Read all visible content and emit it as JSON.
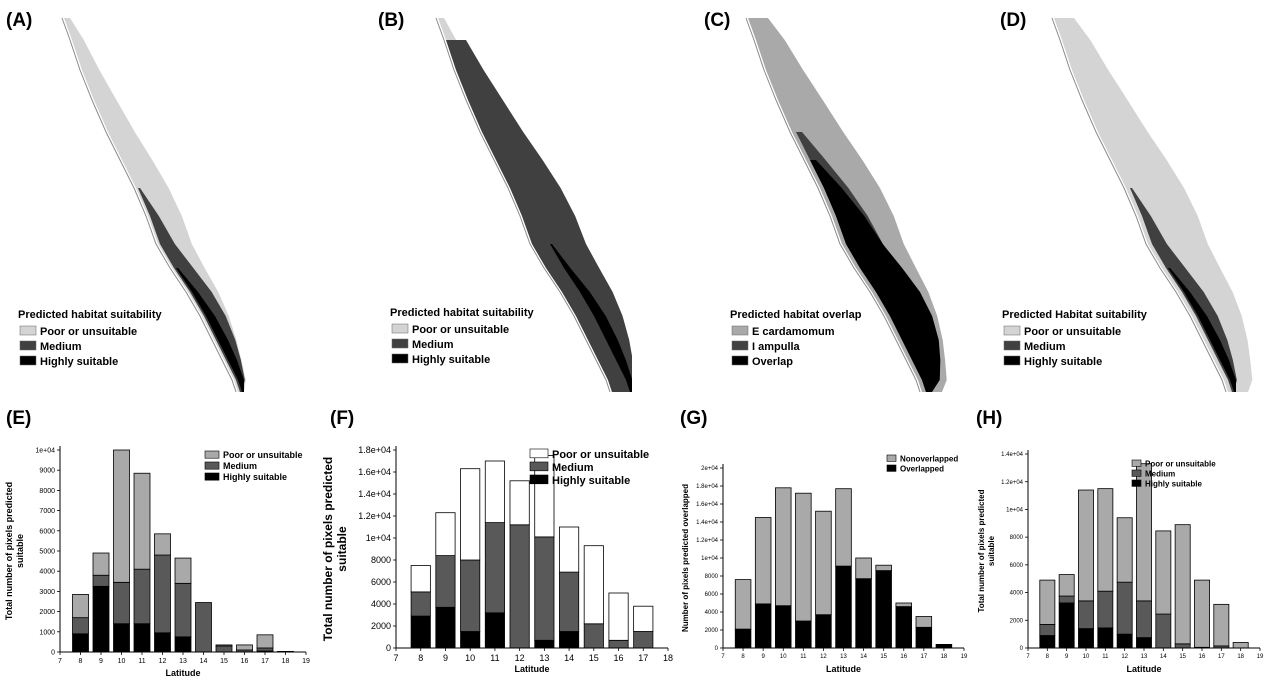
{
  "colors": {
    "poor": "#d4d4d4",
    "medium": "#404040",
    "high": "#000000",
    "bar_light": "#a9a9a9",
    "bar_medium": "#595959",
    "bar_dark": "#000000",
    "bar_white": "#ffffff",
    "coast": "#8a8a8a"
  },
  "maps": [
    {
      "id": "A",
      "label": "(A)",
      "style": "a",
      "legend_title": "Predicted habitat suitability",
      "legend_items": [
        {
          "label": "Poor or unsuitable",
          "color": "#d4d4d4"
        },
        {
          "label": "Medium",
          "color": "#404040"
        },
        {
          "label": "Highly suitable",
          "color": "#000000"
        }
      ]
    },
    {
      "id": "B",
      "label": "(B)",
      "style": "b",
      "legend_title": "Predicted habitat suitability",
      "legend_items": [
        {
          "label": "Poor or unsuitable",
          "color": "#d4d4d4"
        },
        {
          "label": "Medium",
          "color": "#404040"
        },
        {
          "label": "Highly suitable",
          "color": "#000000"
        }
      ]
    },
    {
      "id": "C",
      "label": "(C)",
      "style": "c",
      "legend_title": "Predicted habitat overlap",
      "legend_items": [
        {
          "label": "E cardamomum",
          "color": "#a9a9a9"
        },
        {
          "label": "I ampulla",
          "color": "#404040"
        },
        {
          "label": "Overlap",
          "color": "#000000"
        }
      ]
    },
    {
      "id": "D",
      "label": "(D)",
      "style": "d",
      "legend_title": "Predicted Habitat suitability",
      "legend_items": [
        {
          "label": "Poor or unsuitable",
          "color": "#d4d4d4"
        },
        {
          "label": "Medium",
          "color": "#404040"
        },
        {
          "label": "Highly suitable",
          "color": "#000000"
        }
      ]
    }
  ],
  "chart_data": [
    {
      "id": "E",
      "label": "(E)",
      "type": "bar",
      "stacked": true,
      "xlabel": "Latitude",
      "ylabel_lines": [
        "Total number of pixels predicted",
        "suitable"
      ],
      "xlim": [
        7,
        19
      ],
      "x_ticks": [
        "7",
        "8",
        "9",
        "10",
        "11",
        "12",
        "13",
        "14",
        "15",
        "16",
        "17",
        "18",
        "19"
      ],
      "ylim": [
        0,
        10000
      ],
      "y_ticks": [
        {
          "v": 0,
          "t": "0"
        },
        {
          "v": 1000,
          "t": "1000"
        },
        {
          "v": 2000,
          "t": "2000"
        },
        {
          "v": 3000,
          "t": "3000"
        },
        {
          "v": 4000,
          "t": "4000"
        },
        {
          "v": 5000,
          "t": "5000"
        },
        {
          "v": 6000,
          "t": "6000"
        },
        {
          "v": 7000,
          "t": "7000"
        },
        {
          "v": 8000,
          "t": "8000"
        },
        {
          "v": 9000,
          "t": "9000"
        },
        {
          "v": 10000,
          "t": "1e+04"
        }
      ],
      "x": [
        8,
        9,
        10,
        11,
        12,
        13,
        14,
        15,
        16,
        17,
        18
      ],
      "series": [
        {
          "name": "Highly suitable",
          "color": "#000000",
          "values": [
            900,
            3250,
            1400,
            1400,
            950,
            750,
            0,
            0,
            0,
            50,
            0
          ]
        },
        {
          "name": "Medium",
          "color": "#595959",
          "values": [
            800,
            550,
            2050,
            2700,
            3850,
            2650,
            2450,
            300,
            100,
            150,
            30
          ]
        },
        {
          "name": "Poor or unsuitable",
          "color": "#a9a9a9",
          "values": [
            1150,
            1100,
            6550,
            4750,
            1050,
            1250,
            0,
            50,
            250,
            650,
            0
          ]
        }
      ],
      "legend": [
        {
          "name": "Poor or unsuitable",
          "color": "#a9a9a9"
        },
        {
          "name": "Medium",
          "color": "#595959"
        },
        {
          "name": "Highly suitable",
          "color": "#000000"
        }
      ],
      "legend_position": "top-right"
    },
    {
      "id": "F",
      "label": "(F)",
      "type": "bar",
      "stacked": true,
      "xlabel": "Latitude",
      "ylabel_lines": [
        "Total number of pixels predicted",
        "suitable"
      ],
      "xlim": [
        7,
        18
      ],
      "x_ticks": [
        "7",
        "8",
        "9",
        "10",
        "11",
        "12",
        "13",
        "14",
        "15",
        "16",
        "17",
        "18"
      ],
      "ylim": [
        0,
        18000
      ],
      "y_ticks": [
        {
          "v": 0,
          "t": "0"
        },
        {
          "v": 2000,
          "t": "2000"
        },
        {
          "v": 4000,
          "t": "4000"
        },
        {
          "v": 6000,
          "t": "6000"
        },
        {
          "v": 8000,
          "t": "8000"
        },
        {
          "v": 10000,
          "t": "1e+04"
        },
        {
          "v": 12000,
          "t": "1.2e+04"
        },
        {
          "v": 14000,
          "t": "1.4e+04"
        },
        {
          "v": 16000,
          "t": "1.6e+04"
        },
        {
          "v": 18000,
          "t": "1.8e+04"
        }
      ],
      "x": [
        8,
        9,
        10,
        11,
        12,
        13,
        14,
        15,
        16,
        17
      ],
      "series": [
        {
          "name": "Highly suitable",
          "color": "#000000",
          "values": [
            2900,
            3700,
            1500,
            3200,
            0,
            700,
            1500,
            0,
            0,
            0
          ]
        },
        {
          "name": "Medium",
          "color": "#595959",
          "values": [
            2200,
            4700,
            6500,
            8200,
            11200,
            9400,
            5400,
            2200,
            700,
            1500
          ]
        },
        {
          "name": "Poor or unsuitable",
          "color": "#ffffff",
          "values": [
            2400,
            3900,
            8300,
            5600,
            4000,
            7400,
            4100,
            7100,
            4300,
            2300
          ]
        }
      ],
      "legend": [
        {
          "name": "Poor or unsuitable",
          "color": "#ffffff"
        },
        {
          "name": "Medium",
          "color": "#595959"
        },
        {
          "name": "Highly suitable",
          "color": "#000000"
        }
      ],
      "legend_position": "top-right"
    },
    {
      "id": "G",
      "label": "(G)",
      "type": "bar",
      "stacked": true,
      "xlabel": "Latitude",
      "ylabel_lines": [
        "Number of pixels predicted overlapped"
      ],
      "xlim": [
        7,
        19
      ],
      "x_ticks": [
        "7",
        "8",
        "9",
        "10",
        "11",
        "12",
        "13",
        "14",
        "15",
        "16",
        "17",
        "18",
        "19"
      ],
      "ylim": [
        0,
        20000
      ],
      "y_ticks": [
        {
          "v": 0,
          "t": "0"
        },
        {
          "v": 2000,
          "t": "2000"
        },
        {
          "v": 4000,
          "t": "4000"
        },
        {
          "v": 6000,
          "t": "6000"
        },
        {
          "v": 8000,
          "t": "8000"
        },
        {
          "v": 10000,
          "t": "1e+04"
        },
        {
          "v": 12000,
          "t": "1.2e+04"
        },
        {
          "v": 14000,
          "t": "1.4e+04"
        },
        {
          "v": 16000,
          "t": "1.6e+04"
        },
        {
          "v": 18000,
          "t": "1.8e+04"
        },
        {
          "v": 20000,
          "t": "2e+04"
        }
      ],
      "x": [
        8,
        9,
        10,
        11,
        12,
        13,
        14,
        15,
        16,
        17,
        18
      ],
      "series": [
        {
          "name": "Overlapped",
          "color": "#000000",
          "values": [
            2100,
            4900,
            4700,
            3000,
            3700,
            9100,
            7700,
            8600,
            4600,
            2300,
            400
          ]
        },
        {
          "name": "Nonoverlapped",
          "color": "#a9a9a9",
          "values": [
            5500,
            9600,
            13100,
            14200,
            11500,
            8600,
            2300,
            600,
            400,
            1200,
            0
          ]
        }
      ],
      "legend": [
        {
          "name": "Nonoverlapped",
          "color": "#a9a9a9"
        },
        {
          "name": "Overlapped",
          "color": "#000000"
        }
      ],
      "legend_position": "top-right"
    },
    {
      "id": "H",
      "label": "(H)",
      "type": "bar",
      "stacked": true,
      "xlabel": "Latitude",
      "ylabel_lines": [
        "Total number of pixels predicted",
        "suitable"
      ],
      "xlim": [
        7,
        19
      ],
      "x_ticks": [
        "7",
        "8",
        "9",
        "10",
        "11",
        "12",
        "13",
        "14",
        "15",
        "16",
        "17",
        "18",
        "19"
      ],
      "ylim": [
        0,
        14000
      ],
      "y_ticks": [
        {
          "v": 0,
          "t": "0"
        },
        {
          "v": 2000,
          "t": "2000"
        },
        {
          "v": 4000,
          "t": "4000"
        },
        {
          "v": 6000,
          "t": "6000"
        },
        {
          "v": 8000,
          "t": "8000"
        },
        {
          "v": 10000,
          "t": "1e+04"
        },
        {
          "v": 12000,
          "t": "1.2e+04"
        },
        {
          "v": 14000,
          "t": "1.4e+04"
        }
      ],
      "x": [
        8,
        9,
        10,
        11,
        12,
        13,
        14,
        15,
        16,
        17,
        18
      ],
      "series": [
        {
          "name": "Highly suitable",
          "color": "#000000",
          "values": [
            900,
            3250,
            1400,
            1450,
            1000,
            750,
            0,
            0,
            0,
            0,
            0
          ]
        },
        {
          "name": "Medium",
          "color": "#595959",
          "values": [
            800,
            500,
            2000,
            2650,
            3750,
            2650,
            2450,
            300,
            50,
            150,
            0
          ]
        },
        {
          "name": "Poor or unsuitable",
          "color": "#a9a9a9",
          "values": [
            3200,
            1550,
            8000,
            7400,
            4650,
            9900,
            6000,
            8600,
            4850,
            3000,
            400
          ]
        }
      ],
      "legend": [
        {
          "name": "Poor or unsuitable",
          "color": "#a9a9a9"
        },
        {
          "name": "Medium",
          "color": "#595959"
        },
        {
          "name": "Highly suitable",
          "color": "#000000"
        }
      ],
      "legend_position": "top-right"
    }
  ]
}
